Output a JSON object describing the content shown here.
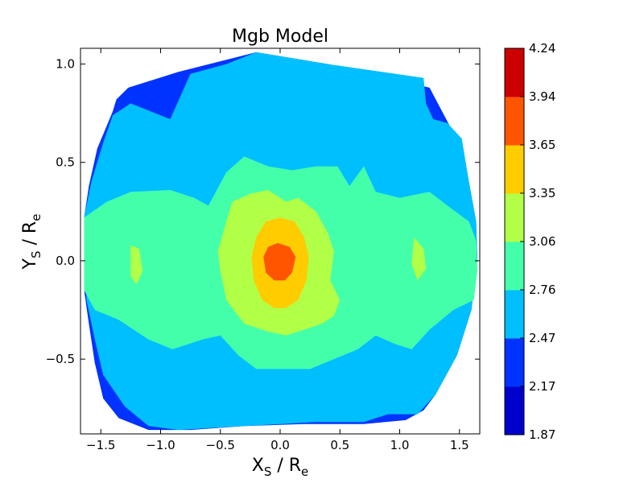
{
  "chart_data": {
    "type": "heatmap",
    "title": "Mgb Model",
    "xlabel": {
      "main": "X",
      "sub1": "S",
      "mid": " / R",
      "sub2": "e"
    },
    "ylabel": {
      "main": "Y",
      "sub1": "S",
      "mid": " / R",
      "sub2": "e"
    },
    "xlim": [
      -1.67,
      1.67
    ],
    "ylim": [
      -0.88,
      1.08
    ],
    "xticks": [
      -1.5,
      -1.0,
      -0.5,
      0.0,
      0.5,
      1.0,
      1.5
    ],
    "xtick_labels": [
      "−1.5",
      "−1.0",
      "−0.5",
      "0.0",
      "0.5",
      "1.0",
      "1.5"
    ],
    "yticks": [
      -0.5,
      0.0,
      0.5,
      1.0
    ],
    "ytick_labels": [
      "−0.5",
      "0.0",
      "0.5",
      "1.0"
    ],
    "colorbar": {
      "levels": [
        1.87,
        2.17,
        2.47,
        2.76,
        3.06,
        3.35,
        3.65,
        3.94,
        4.24
      ],
      "level_labels": [
        "1.87",
        "2.17",
        "2.47",
        "2.76",
        "3.06",
        "3.35",
        "3.65",
        "3.94",
        "4.24"
      ],
      "colors": [
        "#0000cc",
        "#0033ff",
        "#00bfff",
        "#44ffaa",
        "#b2ff47",
        "#ffcc00",
        "#ff5500",
        "#cc0000"
      ]
    },
    "contour_regions": [
      {
        "name": "outer-2.17-2.47",
        "level": 1,
        "points": [
          [
            -0.85,
            0.96
          ],
          [
            -1.27,
            0.88
          ],
          [
            -1.37,
            0.82
          ],
          [
            -1.4,
            0.76
          ],
          [
            -1.53,
            0.57
          ],
          [
            -1.6,
            0.38
          ],
          [
            -1.64,
            0.22
          ],
          [
            -1.64,
            -0.15
          ],
          [
            -1.6,
            -0.32
          ],
          [
            -1.55,
            -0.52
          ],
          [
            -1.48,
            -0.7
          ],
          [
            -1.35,
            -0.8
          ],
          [
            -1.1,
            -0.86
          ],
          [
            -0.75,
            -0.86
          ],
          [
            -0.3,
            -0.84
          ],
          [
            0.2,
            -0.83
          ],
          [
            0.7,
            -0.83
          ],
          [
            1.05,
            -0.81
          ],
          [
            1.2,
            -0.76
          ],
          [
            1.3,
            -0.68
          ],
          [
            1.48,
            -0.48
          ],
          [
            1.6,
            -0.25
          ],
          [
            1.65,
            0.0
          ],
          [
            1.64,
            0.2
          ],
          [
            1.58,
            0.4
          ],
          [
            1.52,
            0.6
          ],
          [
            1.45,
            0.65
          ],
          [
            1.25,
            0.88
          ],
          [
            0.4,
            1.0
          ],
          [
            -0.2,
            1.06
          ]
        ]
      },
      {
        "name": "main-2.47-2.76",
        "level": 2,
        "points": [
          [
            -0.2,
            1.06
          ],
          [
            0.4,
            1.0
          ],
          [
            1.2,
            0.93
          ],
          [
            1.22,
            0.8
          ],
          [
            1.28,
            0.72
          ],
          [
            1.4,
            0.7
          ],
          [
            1.52,
            0.62
          ],
          [
            1.58,
            0.4
          ],
          [
            1.64,
            0.2
          ],
          [
            1.65,
            0.0
          ],
          [
            1.6,
            -0.25
          ],
          [
            1.48,
            -0.48
          ],
          [
            1.3,
            -0.68
          ],
          [
            1.15,
            -0.78
          ],
          [
            0.9,
            -0.78
          ],
          [
            0.7,
            -0.82
          ],
          [
            0.3,
            -0.82
          ],
          [
            -0.3,
            -0.84
          ],
          [
            -0.85,
            -0.86
          ],
          [
            -1.1,
            -0.84
          ],
          [
            -1.3,
            -0.74
          ],
          [
            -1.48,
            -0.58
          ],
          [
            -1.55,
            -0.4
          ],
          [
            -1.62,
            -0.2
          ],
          [
            -1.64,
            0.1
          ],
          [
            -1.64,
            0.22
          ],
          [
            -1.58,
            0.4
          ],
          [
            -1.48,
            0.6
          ],
          [
            -1.4,
            0.74
          ],
          [
            -1.25,
            0.8
          ],
          [
            -0.92,
            0.72
          ],
          [
            -0.75,
            0.95
          ],
          [
            -0.45,
            1.0
          ]
        ]
      },
      {
        "name": "band-2.76-3.06",
        "level": 3,
        "points": [
          [
            -1.64,
            0.22
          ],
          [
            -1.45,
            0.3
          ],
          [
            -1.25,
            0.35
          ],
          [
            -0.92,
            0.36
          ],
          [
            -0.72,
            0.32
          ],
          [
            -0.6,
            0.28
          ],
          [
            -0.45,
            0.45
          ],
          [
            -0.3,
            0.53
          ],
          [
            -0.1,
            0.48
          ],
          [
            0.1,
            0.46
          ],
          [
            0.3,
            0.48
          ],
          [
            0.48,
            0.48
          ],
          [
            0.58,
            0.38
          ],
          [
            0.7,
            0.48
          ],
          [
            0.8,
            0.35
          ],
          [
            1.0,
            0.32
          ],
          [
            1.25,
            0.35
          ],
          [
            1.4,
            0.28
          ],
          [
            1.58,
            0.2
          ],
          [
            1.64,
            0.1
          ],
          [
            1.65,
            -0.05
          ],
          [
            1.62,
            -0.2
          ],
          [
            1.45,
            -0.25
          ],
          [
            1.25,
            -0.35
          ],
          [
            1.1,
            -0.45
          ],
          [
            0.95,
            -0.42
          ],
          [
            0.8,
            -0.38
          ],
          [
            0.65,
            -0.45
          ],
          [
            0.45,
            -0.5
          ],
          [
            0.25,
            -0.55
          ],
          [
            -0.2,
            -0.55
          ],
          [
            -0.35,
            -0.48
          ],
          [
            -0.5,
            -0.38
          ],
          [
            -0.65,
            -0.4
          ],
          [
            -0.9,
            -0.45
          ],
          [
            -1.1,
            -0.4
          ],
          [
            -1.35,
            -0.3
          ],
          [
            -1.55,
            -0.25
          ],
          [
            -1.64,
            -0.15
          ]
        ]
      },
      {
        "name": "core-3.06-3.35",
        "level": 4,
        "points": [
          [
            -0.1,
            0.36
          ],
          [
            0.05,
            0.3
          ],
          [
            0.15,
            0.32
          ],
          [
            0.3,
            0.25
          ],
          [
            0.4,
            0.14
          ],
          [
            0.45,
            0.05
          ],
          [
            0.42,
            -0.1
          ],
          [
            0.5,
            -0.2
          ],
          [
            0.45,
            -0.28
          ],
          [
            0.35,
            -0.32
          ],
          [
            0.2,
            -0.35
          ],
          [
            0.05,
            -0.38
          ],
          [
            -0.1,
            -0.36
          ],
          [
            -0.3,
            -0.32
          ],
          [
            -0.45,
            -0.2
          ],
          [
            -0.5,
            -0.05
          ],
          [
            -0.52,
            0.05
          ],
          [
            -0.45,
            0.2
          ],
          [
            -0.4,
            0.3
          ],
          [
            -0.25,
            0.34
          ]
        ]
      },
      {
        "name": "inner-3.35-3.65",
        "level": 5,
        "points": [
          [
            0.0,
            0.22
          ],
          [
            0.12,
            0.2
          ],
          [
            0.2,
            0.12
          ],
          [
            0.24,
            0.02
          ],
          [
            0.22,
            -0.1
          ],
          [
            0.15,
            -0.2
          ],
          [
            0.05,
            -0.24
          ],
          [
            -0.05,
            -0.24
          ],
          [
            -0.15,
            -0.2
          ],
          [
            -0.22,
            -0.1
          ],
          [
            -0.24,
            0.02
          ],
          [
            -0.2,
            0.12
          ],
          [
            -0.12,
            0.2
          ]
        ]
      },
      {
        "name": "peak-3.65-3.94",
        "level": 6,
        "points": [
          [
            -0.02,
            0.09
          ],
          [
            0.08,
            0.07
          ],
          [
            0.13,
            0.02
          ],
          [
            0.1,
            -0.06
          ],
          [
            0.04,
            -0.1
          ],
          [
            -0.05,
            -0.1
          ],
          [
            -0.12,
            -0.06
          ],
          [
            -0.14,
            0.02
          ],
          [
            -0.1,
            0.07
          ]
        ]
      },
      {
        "name": "patch-left-3.06",
        "level": 4,
        "points": [
          [
            -1.25,
            0.08
          ],
          [
            -1.18,
            0.06
          ],
          [
            -1.15,
            -0.05
          ],
          [
            -1.2,
            -0.12
          ],
          [
            -1.25,
            -0.08
          ]
        ]
      },
      {
        "name": "patch-right-3.06",
        "level": 4,
        "points": [
          [
            1.12,
            0.12
          ],
          [
            1.2,
            0.06
          ],
          [
            1.22,
            -0.04
          ],
          [
            1.15,
            -0.1
          ],
          [
            1.1,
            -0.02
          ]
        ]
      }
    ]
  }
}
